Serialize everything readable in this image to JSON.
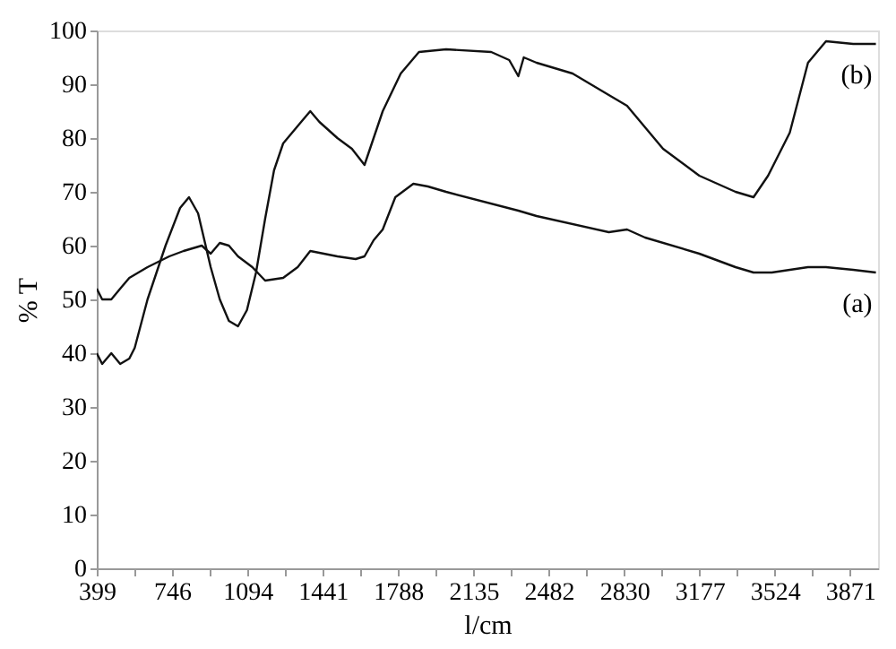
{
  "chart_data": {
    "type": "line",
    "xlabel": "l/cm",
    "ylabel": "% T",
    "xlim": [
      399,
      4000
    ],
    "ylim": [
      0,
      100
    ],
    "xticks": [
      399,
      {
        "value": 572.5,
        "label": null
      },
      746,
      {
        "value": 920,
        "label": null
      },
      1094,
      {
        "value": 1267.5,
        "label": null
      },
      1441,
      {
        "value": 1614.5,
        "label": null
      },
      1788,
      {
        "value": 1961.5,
        "label": null
      },
      2135,
      {
        "value": 2308.5,
        "label": null
      },
      2482,
      {
        "value": 2656,
        "label": null
      },
      2830,
      {
        "value": 3003.5,
        "label": null
      },
      3177,
      {
        "value": 3350.5,
        "label": null
      },
      3524,
      {
        "value": 3697.5,
        "label": null
      },
      3871
    ],
    "yticks": [
      0,
      10,
      20,
      30,
      40,
      50,
      60,
      70,
      80,
      90,
      100
    ],
    "grid": false,
    "legend": false,
    "marker": "none",
    "line_style": "solid",
    "series": [
      {
        "name": "(a)",
        "color": "#111111",
        "x": [
          399,
          424,
          466,
          507,
          549,
          633,
          733,
          799,
          883,
          924,
          966,
          1008,
          1050,
          1116,
          1175,
          1258,
          1325,
          1383,
          1508,
          1592,
          1633,
          1675,
          1717,
          1775,
          1858,
          1925,
          2009,
          2342,
          2426,
          2759,
          2843,
          2926,
          3176,
          3343,
          3426,
          3510,
          3677,
          3760,
          3885,
          3990
        ],
        "values": [
          52,
          50,
          50,
          52,
          54,
          56,
          58,
          59,
          60,
          58.5,
          60.5,
          60,
          58,
          56,
          53.5,
          54,
          56,
          59,
          58,
          57.5,
          58,
          61,
          63,
          69,
          71.5,
          71,
          70,
          66.5,
          65.5,
          62.5,
          63,
          61.5,
          58.5,
          56,
          55,
          55,
          56,
          56,
          55.5,
          55
        ]
      },
      {
        "name": "(b)",
        "color": "#111111",
        "x": [
          399,
          424,
          466,
          507,
          549,
          574,
          633,
          716,
          783,
          824,
          866,
          924,
          966,
          1008,
          1050,
          1091,
          1133,
          1175,
          1216,
          1258,
          1341,
          1383,
          1425,
          1508,
          1575,
          1633,
          1675,
          1717,
          1800,
          1884,
          2009,
          2217,
          2300,
          2342,
          2367,
          2426,
          2592,
          2759,
          2843,
          2926,
          3009,
          3176,
          3343,
          3426,
          3493,
          3593,
          3677,
          3760,
          3885,
          3990
        ],
        "values": [
          40,
          38,
          40,
          38,
          39,
          41,
          50,
          60,
          67,
          69,
          66,
          56,
          50,
          46,
          45,
          48,
          55,
          65,
          74,
          79,
          83,
          85,
          83,
          80,
          78,
          75,
          80,
          85,
          92,
          96,
          96.5,
          96,
          94.5,
          91.5,
          95,
          94,
          92,
          88,
          86,
          82,
          78,
          73,
          70,
          69,
          73,
          81,
          94,
          98,
          97.5,
          97.5
        ]
      }
    ]
  }
}
